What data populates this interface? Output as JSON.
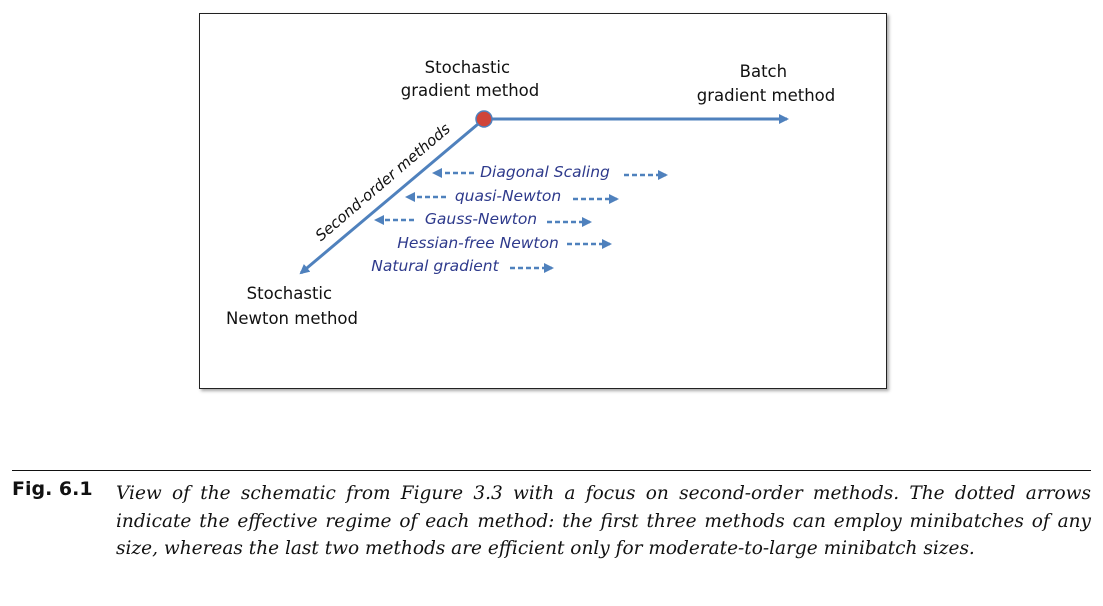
{
  "diagram": {
    "nodes": {
      "sgd": [
        "Stochastic",
        "gradient method"
      ],
      "batch": [
        "Batch",
        "gradient method"
      ],
      "newton": [
        "Stochastic",
        "Newton method"
      ]
    },
    "second_order_label": "Second-order methods",
    "methods": [
      "Diagonal Scaling",
      "quasi-Newton",
      "Gauss-Newton",
      "Hessian-free Newton",
      "Natural gradient"
    ],
    "colors": {
      "arrow": "#4f81bd",
      "node": "#d0453a",
      "method_text": "#2e3a8c"
    }
  },
  "caption": {
    "label": "Fig. 6.1",
    "text": "View of the schematic from Figure 3.3 with a focus on second-order methods. The dotted arrows indicate the effective regime of each method: the first three methods can employ minibatches of any size, whereas the last two methods are efficient only for moderate-to-large minibatch sizes."
  }
}
